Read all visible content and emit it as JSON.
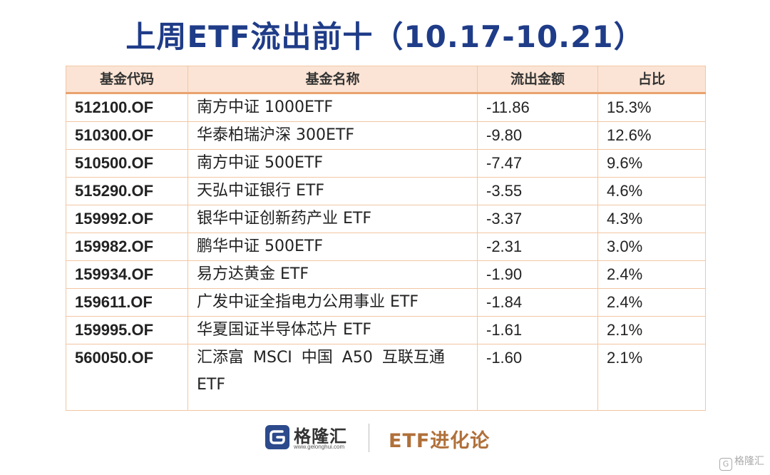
{
  "title": "上周ETF流出前十（10.17-10.21）",
  "table": {
    "headers": [
      "基金代码",
      "基金名称",
      "流出金额",
      "占比"
    ],
    "rows": [
      {
        "code": "512100.OF",
        "name": "南方中证 1000ETF",
        "outflow": "-11.86",
        "share": "15.3%"
      },
      {
        "code": "510300.OF",
        "name": "华泰柏瑞沪深 300ETF",
        "outflow": "-9.80",
        "share": "12.6%"
      },
      {
        "code": "510500.OF",
        "name": "南方中证 500ETF",
        "outflow": "-7.47",
        "share": "9.6%"
      },
      {
        "code": "515290.OF",
        "name": "天弘中证银行 ETF",
        "outflow": "-3.55",
        "share": "4.6%"
      },
      {
        "code": "159992.OF",
        "name": "银华中证创新药产业 ETF",
        "outflow": "-3.37",
        "share": "4.3%"
      },
      {
        "code": "159982.OF",
        "name": "鹏华中证 500ETF",
        "outflow": "-2.31",
        "share": "3.0%"
      },
      {
        "code": "159934.OF",
        "name": "易方达黄金 ETF",
        "outflow": "-1.90",
        "share": "2.4%"
      },
      {
        "code": "159611.OF",
        "name": "广发中证全指电力公用事业 ETF",
        "outflow": "-1.84",
        "share": "2.4%"
      },
      {
        "code": "159995.OF",
        "name": "华夏国证半导体芯片 ETF",
        "outflow": "-1.61",
        "share": "2.1%"
      },
      {
        "code": "560050.OF",
        "name": "汇添富 MSCI 中国 A50 互联互通 ETF",
        "outflow": "-1.60",
        "share": "2.1%"
      }
    ]
  },
  "footer": {
    "logo_name": "格隆汇",
    "logo_url": "www.gelonghui.com",
    "brand": "ETF进化论",
    "watermark": "格隆汇",
    "logo_icon": "gelonghui-logo-icon"
  },
  "colors": {
    "title": "#1f3c88",
    "header_bg": "#fbe4d5",
    "border": "#f2c7a3",
    "brand": "#b0703a"
  }
}
